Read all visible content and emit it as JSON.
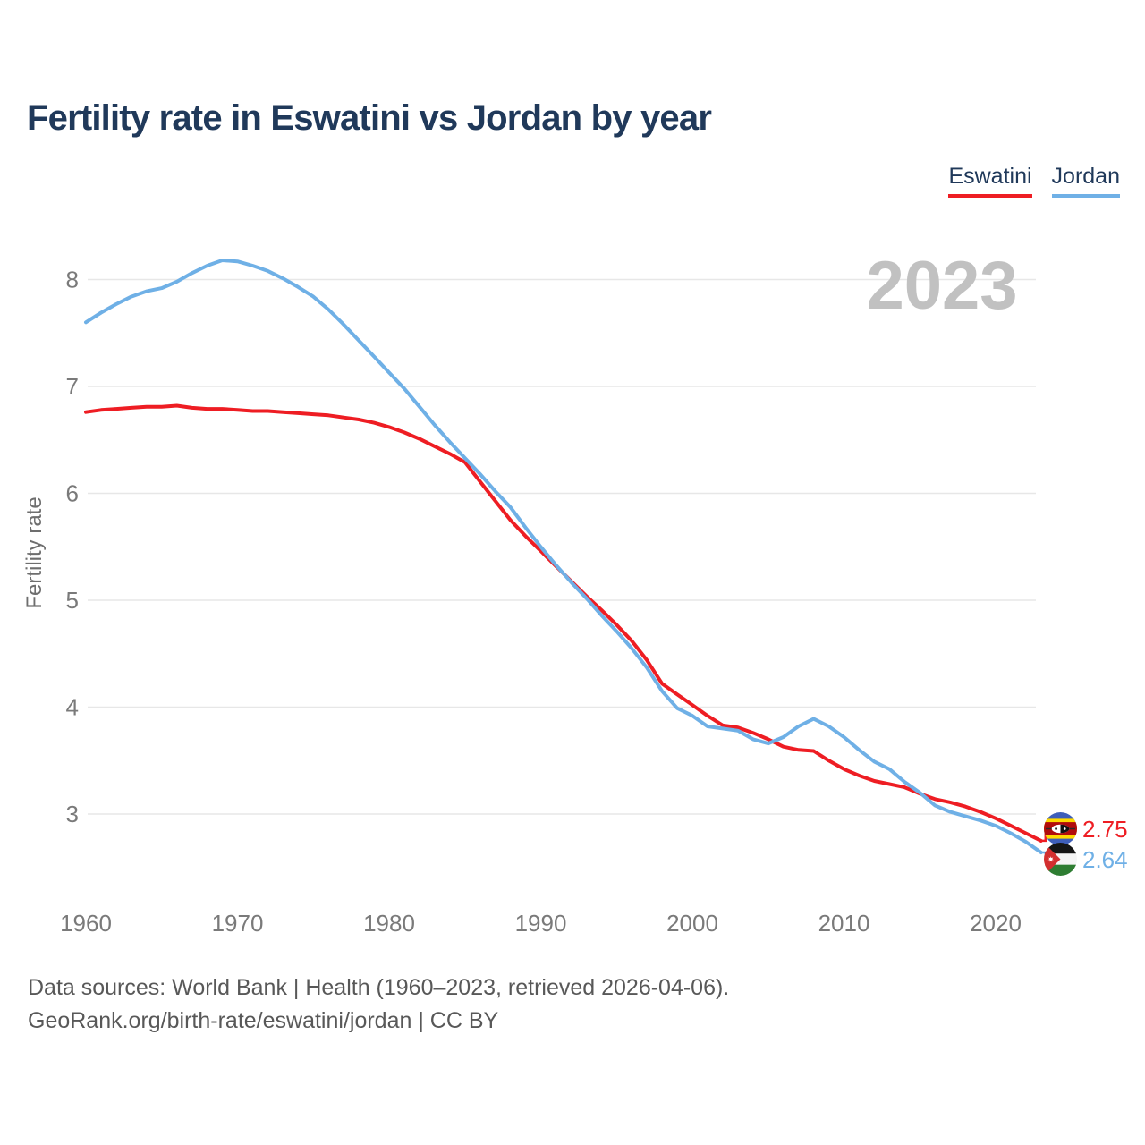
{
  "header": {
    "title": "Fertility rate in Eswatini vs Jordan by year"
  },
  "legend": {
    "items": [
      {
        "label": "Eswatini",
        "color": "#ee1d23"
      },
      {
        "label": "Jordan",
        "color": "#6fb0e6"
      }
    ]
  },
  "end_labels": [
    {
      "series": "Eswatini",
      "value": "2.75",
      "flag": "eswatini-flag",
      "color": "#ee1d23"
    },
    {
      "series": "Jordan",
      "value": "2.64",
      "flag": "jordan-flag",
      "color": "#6fb0e6"
    }
  ],
  "footer": {
    "line1": "Data sources: World Bank | Health (1960–2023, retrieved 2026-04-06).",
    "line2": "GeoRank.org/birth-rate/eswatini/jordan | CC BY"
  },
  "chart_data": {
    "type": "line",
    "title": "Fertility rate in Eswatini vs Jordan by year",
    "xlabel": "",
    "ylabel": "Fertility rate",
    "watermark": "2023",
    "grid": true,
    "legend_position": "top-right",
    "ylim": [
      2.5,
      8.4
    ],
    "y_ticks": [
      8,
      7,
      6,
      5,
      4,
      3
    ],
    "x_ticks": [
      1960,
      1970,
      1980,
      1990,
      2000,
      2010,
      2020
    ],
    "x_range": [
      1960,
      2023
    ],
    "x": [
      1960,
      1961,
      1962,
      1963,
      1964,
      1965,
      1966,
      1967,
      1968,
      1969,
      1970,
      1971,
      1972,
      1973,
      1974,
      1975,
      1976,
      1977,
      1978,
      1979,
      1980,
      1981,
      1982,
      1983,
      1984,
      1985,
      1986,
      1987,
      1988,
      1989,
      1990,
      1991,
      1992,
      1993,
      1994,
      1995,
      1996,
      1997,
      1998,
      1999,
      2000,
      2001,
      2002,
      2003,
      2004,
      2005,
      2006,
      2007,
      2008,
      2009,
      2010,
      2011,
      2012,
      2013,
      2014,
      2015,
      2016,
      2017,
      2018,
      2019,
      2020,
      2021,
      2022,
      2023
    ],
    "series": [
      {
        "name": "Eswatini",
        "color": "#ee1d23",
        "end_value": 2.75,
        "values": [
          6.76,
          6.78,
          6.79,
          6.8,
          6.81,
          6.81,
          6.82,
          6.8,
          6.79,
          6.79,
          6.78,
          6.77,
          6.77,
          6.76,
          6.75,
          6.74,
          6.73,
          6.71,
          6.69,
          6.66,
          6.62,
          6.57,
          6.51,
          6.44,
          6.37,
          6.29,
          6.11,
          5.93,
          5.75,
          5.6,
          5.46,
          5.32,
          5.18,
          5.04,
          4.91,
          4.77,
          4.62,
          4.44,
          4.22,
          4.12,
          4.02,
          3.92,
          3.83,
          3.81,
          3.76,
          3.7,
          3.63,
          3.6,
          3.59,
          3.5,
          3.42,
          3.36,
          3.31,
          3.28,
          3.25,
          3.19,
          3.14,
          3.11,
          3.07,
          3.02,
          2.96,
          2.89,
          2.82,
          2.75
        ]
      },
      {
        "name": "Jordan",
        "color": "#6fb0e6",
        "end_value": 2.64,
        "values": [
          7.6,
          7.69,
          7.77,
          7.84,
          7.89,
          7.92,
          7.98,
          8.06,
          8.13,
          8.18,
          8.17,
          8.13,
          8.08,
          8.01,
          7.93,
          7.84,
          7.72,
          7.58,
          7.43,
          7.28,
          7.13,
          6.98,
          6.81,
          6.64,
          6.48,
          6.33,
          6.18,
          6.02,
          5.87,
          5.68,
          5.5,
          5.33,
          5.17,
          5.02,
          4.86,
          4.71,
          4.55,
          4.37,
          4.15,
          3.99,
          3.92,
          3.82,
          3.8,
          3.78,
          3.7,
          3.66,
          3.72,
          3.82,
          3.89,
          3.82,
          3.72,
          3.6,
          3.49,
          3.42,
          3.3,
          3.2,
          3.08,
          3.02,
          2.98,
          2.94,
          2.89,
          2.82,
          2.74,
          2.64
        ]
      }
    ]
  }
}
